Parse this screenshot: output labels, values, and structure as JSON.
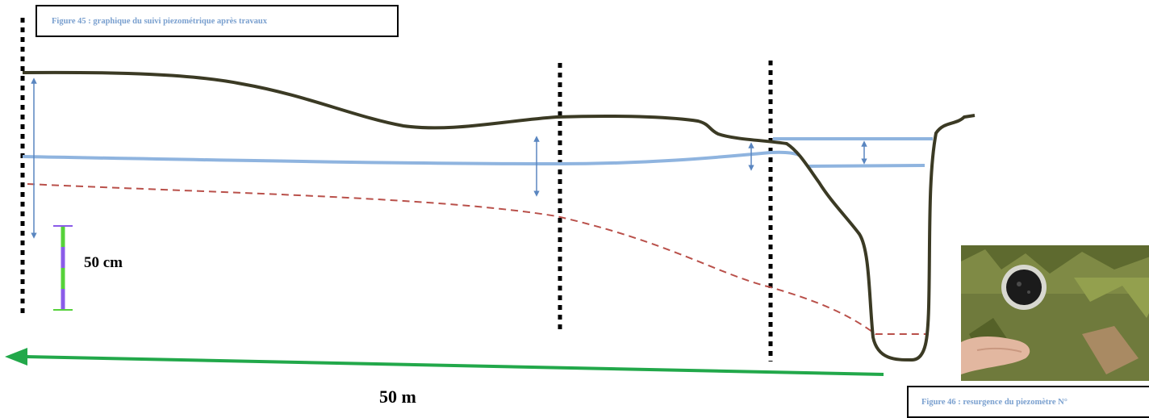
{
  "figure45": {
    "caption": "Figure 45 : graphique du suivi piezométrique après travaux"
  },
  "figure46": {
    "caption": "Figure 46 : resurgence du piezomètre N°"
  },
  "labels": {
    "vertical_scale": "50 cm",
    "horizontal_scale": "50 m"
  },
  "colors": {
    "ground_profile": "#3b3a24",
    "water_table_after": "#8fb4df",
    "water_table_before": "#b9504a",
    "measure_arrow": "#5a86c0",
    "piezometer_marker": "#000000",
    "scale_bar_green": "#56d13a",
    "scale_bar_purple": "#8a5be8",
    "distance_arrow": "#22a84a"
  },
  "icons": {
    "vertical_measure": "double-headed-arrow-icon",
    "distance": "left-arrow-icon",
    "piezometer": "dotted-vertical-line-icon"
  }
}
